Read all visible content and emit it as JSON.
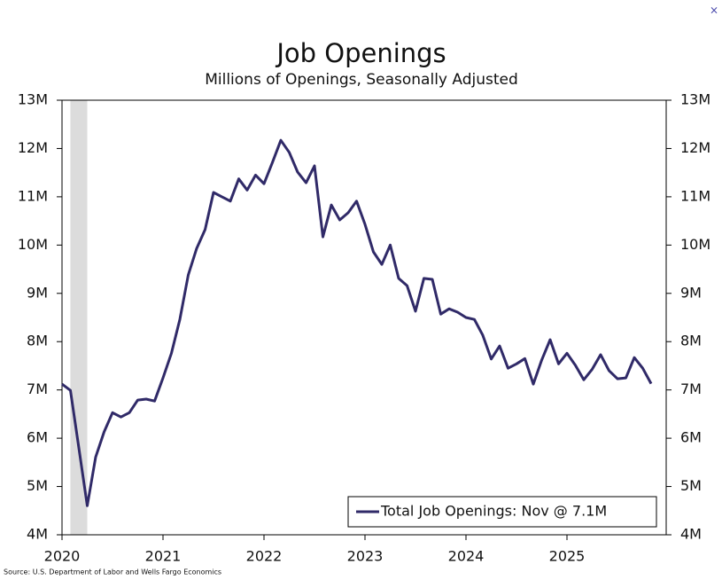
{
  "chart_data": {
    "type": "line",
    "title": "Job Openings",
    "subtitle": "Millions of Openings, Seasonally Adjusted",
    "source": "Source: U.S. Department of Labor and Wells Fargo Economics",
    "x": [
      2020,
      2020.083,
      2020.167,
      2020.25,
      2020.333,
      2020.417,
      2020.5,
      2020.583,
      2020.667,
      2020.75,
      2020.833,
      2020.917,
      2021,
      2021.083,
      2021.167,
      2021.25,
      2021.333,
      2021.417,
      2021.5,
      2021.583,
      2021.667,
      2021.75,
      2021.833,
      2021.917,
      2022,
      2022.083,
      2022.167,
      2022.25,
      2022.333,
      2022.417,
      2022.5,
      2022.583,
      2022.667,
      2022.75,
      2022.833,
      2022.917,
      2023,
      2023.083,
      2023.167,
      2023.25,
      2023.333,
      2023.417,
      2023.5,
      2023.583,
      2023.667,
      2023.75,
      2023.833,
      2023.917,
      2024,
      2024.083,
      2024.167,
      2024.25,
      2024.333,
      2024.417,
      2024.5,
      2024.583,
      2024.667,
      2024.75,
      2024.833,
      2024.917,
      2025,
      2025.083,
      2025.167,
      2025.25,
      2025.333,
      2025.417,
      2025.5,
      2025.583,
      2025.667,
      2025.75,
      2025.833
    ],
    "series": [
      {
        "name": "Total Job Openings: Nov @ 7.1M",
        "color": "#302a68",
        "values": [
          7.12,
          6.99,
          5.8,
          4.6,
          5.61,
          6.13,
          6.53,
          6.44,
          6.53,
          6.79,
          6.81,
          6.77,
          7.25,
          7.76,
          8.46,
          9.38,
          9.93,
          10.32,
          11.09,
          11.0,
          10.91,
          11.37,
          11.14,
          11.45,
          11.27,
          11.71,
          12.17,
          11.92,
          11.51,
          11.29,
          11.64,
          10.17,
          10.83,
          10.52,
          10.67,
          10.91,
          10.43,
          9.86,
          9.6,
          10.0,
          9.31,
          9.16,
          8.63,
          9.31,
          9.29,
          8.57,
          8.68,
          8.61,
          8.5,
          8.46,
          8.13,
          7.64,
          7.91,
          7.45,
          7.54,
          7.65,
          7.12,
          7.62,
          8.04,
          7.54,
          7.76,
          7.51,
          7.21,
          7.43,
          7.73,
          7.4,
          7.23,
          7.25,
          7.67,
          7.45,
          7.13
        ]
      }
    ],
    "recession": [
      2020.083,
      2020.25
    ],
    "recession_color": "#dcdcdc",
    "xlim": [
      2020,
      2026
    ],
    "xticks": [
      2020,
      2021,
      2022,
      2023,
      2024,
      2025
    ],
    "ylim": [
      4,
      13
    ],
    "yticks": [
      {
        "value": 4,
        "label": "4M"
      },
      {
        "value": 5,
        "label": "5M"
      },
      {
        "value": 6,
        "label": "6M"
      },
      {
        "value": 7,
        "label": "7M"
      },
      {
        "value": 8,
        "label": "8M"
      },
      {
        "value": 9,
        "label": "9M"
      },
      {
        "value": 10,
        "label": "10M"
      },
      {
        "value": 11,
        "label": "11M"
      },
      {
        "value": 12,
        "label": "12M"
      },
      {
        "value": 13,
        "label": "13M"
      }
    ],
    "y2lim": [
      4,
      13
    ],
    "y2ticks": [
      {
        "value": 4,
        "label": "4M"
      },
      {
        "value": 5,
        "label": "5M"
      },
      {
        "value": 6,
        "label": "6M"
      },
      {
        "value": 7,
        "label": "7M"
      },
      {
        "value": 8,
        "label": "8M"
      },
      {
        "value": 9,
        "label": "9M"
      },
      {
        "value": 10,
        "label": "10M"
      },
      {
        "value": 11,
        "label": "11M"
      },
      {
        "value": 12,
        "label": "12M"
      },
      {
        "value": 13,
        "label": "13M"
      }
    ],
    "legend": "lower-right",
    "grid": false
  }
}
